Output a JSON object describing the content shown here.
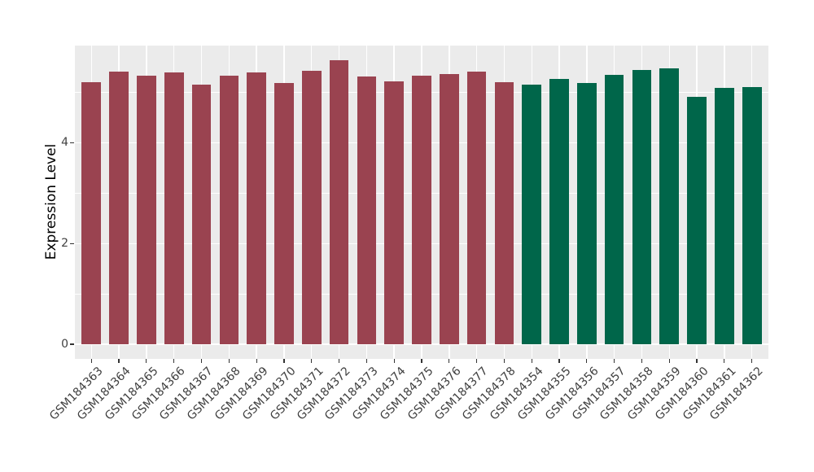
{
  "chart_data": {
    "type": "bar",
    "title": "",
    "ylabel": "Expression Level",
    "xlabel": "",
    "ylim": [
      -0.29,
      5.93
    ],
    "yticks": [
      0,
      2,
      4
    ],
    "minor_gridlines": [
      1,
      3,
      5
    ],
    "grid": true,
    "legend": "none",
    "colors": {
      "panel_bg": "#EBEBEB",
      "grid": "#FFFFFF",
      "tick_mark": "#333333",
      "tick_label": "#404040",
      "maroon": "#9A4350",
      "green": "#00664A"
    },
    "bars": [
      {
        "label": "GSM184363",
        "value": 5.21,
        "group": "maroon"
      },
      {
        "label": "GSM184364",
        "value": 5.41,
        "group": "maroon"
      },
      {
        "label": "GSM184365",
        "value": 5.33,
        "group": "maroon"
      },
      {
        "label": "GSM184366",
        "value": 5.39,
        "group": "maroon"
      },
      {
        "label": "GSM184367",
        "value": 5.16,
        "group": "maroon"
      },
      {
        "label": "GSM184368",
        "value": 5.34,
        "group": "maroon"
      },
      {
        "label": "GSM184369",
        "value": 5.4,
        "group": "maroon"
      },
      {
        "label": "GSM184370",
        "value": 5.19,
        "group": "maroon"
      },
      {
        "label": "GSM184371",
        "value": 5.43,
        "group": "maroon"
      },
      {
        "label": "GSM184372",
        "value": 5.64,
        "group": "maroon"
      },
      {
        "label": "GSM184373",
        "value": 5.31,
        "group": "maroon"
      },
      {
        "label": "GSM184374",
        "value": 5.22,
        "group": "maroon"
      },
      {
        "label": "GSM184375",
        "value": 5.34,
        "group": "maroon"
      },
      {
        "label": "GSM184376",
        "value": 5.36,
        "group": "maroon"
      },
      {
        "label": "GSM184377",
        "value": 5.41,
        "group": "maroon"
      },
      {
        "label": "GSM184378",
        "value": 5.21,
        "group": "maroon"
      },
      {
        "label": "GSM184354",
        "value": 5.16,
        "group": "green"
      },
      {
        "label": "GSM184355",
        "value": 5.26,
        "group": "green"
      },
      {
        "label": "GSM184356",
        "value": 5.18,
        "group": "green"
      },
      {
        "label": "GSM184357",
        "value": 5.35,
        "group": "green"
      },
      {
        "label": "GSM184358",
        "value": 5.45,
        "group": "green"
      },
      {
        "label": "GSM184359",
        "value": 5.48,
        "group": "green"
      },
      {
        "label": "GSM184360",
        "value": 4.91,
        "group": "green"
      },
      {
        "label": "GSM184361",
        "value": 5.09,
        "group": "green"
      },
      {
        "label": "GSM184362",
        "value": 5.1,
        "group": "green"
      }
    ]
  }
}
